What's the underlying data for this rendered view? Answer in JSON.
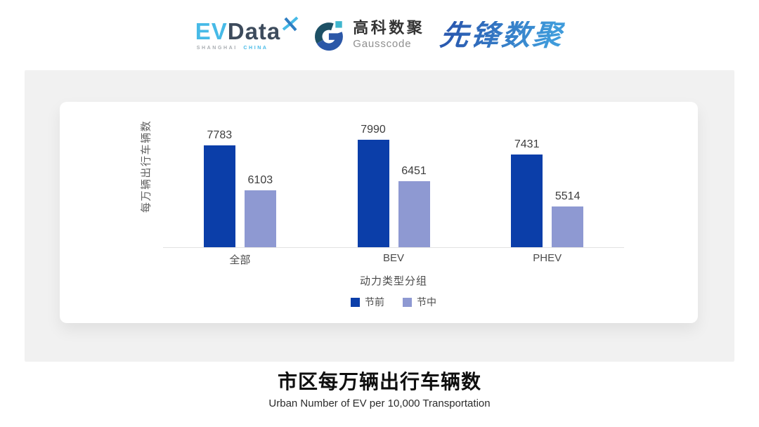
{
  "header": {
    "evdata": {
      "ev": "EV",
      "data": "Data",
      "sub_left": "SHANGHAI",
      "sub_right": "CHINA"
    },
    "gausscode": {
      "cn": "高科数聚",
      "en": "Gausscode"
    },
    "pioneer": {
      "text": "先锋数聚"
    }
  },
  "chart_data": {
    "type": "bar",
    "categories": [
      "全部",
      "BEV",
      "PHEV"
    ],
    "series": [
      {
        "name": "节前",
        "color": "#0B3EA9",
        "values": [
          7783,
          7990,
          7431
        ]
      },
      {
        "name": "节中",
        "color": "#8E99D2",
        "values": [
          6103,
          6451,
          5514
        ]
      }
    ],
    "title": "市区每万辆出行车辆数",
    "subtitle": "Urban Number of EV per 10,000 Transportation",
    "xlabel": "动力类型分组",
    "ylabel": "每万辆出行车辆数",
    "ylim": [
      4000,
      8200
    ],
    "grid": false,
    "legend_position": "bottom",
    "value_labels": true
  },
  "footer": {
    "title": "市区每万辆出行车辆数",
    "subtitle": "Urban Number of EV per 10,000 Transportation"
  },
  "colors": {
    "panel_bg": "#F1F1F1",
    "card_bg": "#FFFFFF",
    "axis_line": "#E2E2E2",
    "series_dark": "#0B3EA9",
    "series_light": "#8E99D2",
    "evdata_cyan": "#47BAE7",
    "evdata_slate": "#3D4B5C",
    "pioneer_blue": "#2E6DBE"
  }
}
